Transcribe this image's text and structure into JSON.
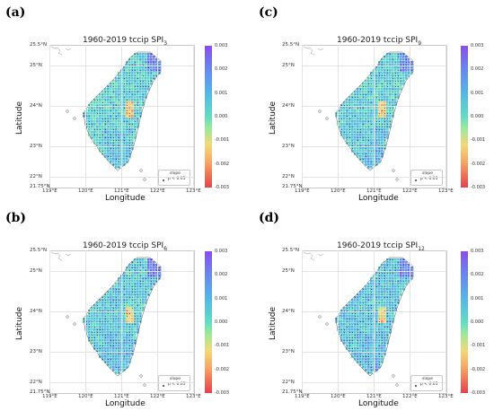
{
  "panels": [
    {
      "label": "(a)",
      "title_prefix": "1960-2019 tccip SPI",
      "title_sub": "3"
    },
    {
      "label": "(c)",
      "title_prefix": "1960-2019 tccip SPI",
      "title_sub": "9"
    },
    {
      "label": "(b)",
      "title_prefix": "1960-2019 tccip SPI",
      "title_sub": "6"
    },
    {
      "label": "(d)",
      "title_prefix": "1960-2019 tccip SPI",
      "title_sub": "12"
    }
  ],
  "axes": {
    "xlabel": "Longitude",
    "ylabel": "Latitude",
    "x_ticks": [
      "119°E",
      "120°E",
      "121°E",
      "122°E",
      "123°E"
    ],
    "y_ticks": [
      "25.5°N",
      "25°N",
      "24°N",
      "23°N",
      "22°N",
      "21.75°N"
    ]
  },
  "colorbar": {
    "ticks": [
      "0.003",
      "0.002",
      "0.001",
      "0.000",
      "-0.001",
      "-0.002",
      "-0.003"
    ],
    "range": [
      -0.003,
      0.003
    ]
  },
  "legend": {
    "title": "slope",
    "entry": "p < 0.05"
  },
  "colors": {
    "positive_high": "#8a4cf0",
    "neutral": "#61dcc4",
    "negative_high": "#e8404f"
  }
}
